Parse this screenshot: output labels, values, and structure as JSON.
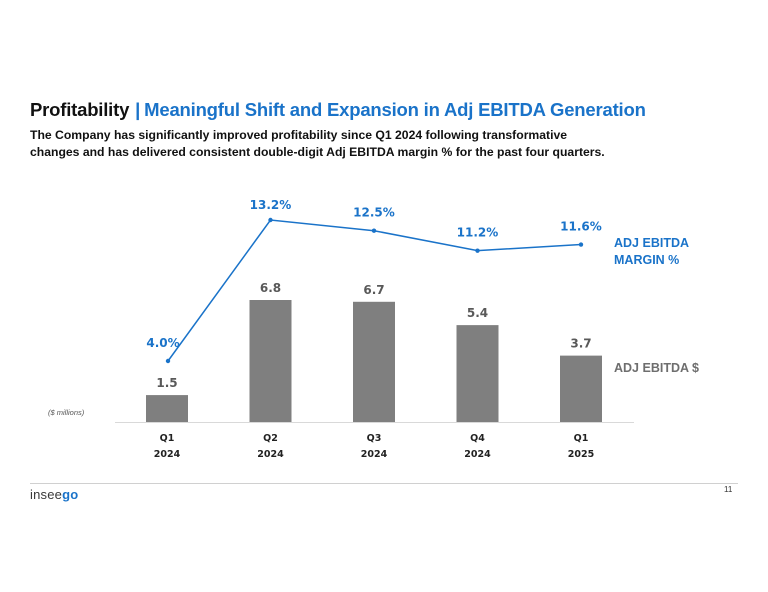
{
  "slide": {
    "title_main": "Profitability",
    "title_separator": "|",
    "title_highlight": "Meaningful Shift and Expansion in Adj EBITDA Generation",
    "subtitle_lines": [
      "The Company has significantly improved profitability since Q1 2024 following transformative",
      "changes and has delivered consistent double-digit Adj EBITDA margin % for the past four quarters."
    ],
    "legend_margin_line1": "ADJ EBITDA",
    "legend_margin_line2": "MARGIN %",
    "legend_dollar": "ADJ EBITDA $",
    "units_note": "($ millions)",
    "logo_text_a": "insee",
    "logo_text_b": "go",
    "page_number": "11"
  },
  "colors": {
    "accent": "#1a73c9",
    "bar": "#7f7f7f",
    "bar_label": "#595959",
    "text": "#111111"
  },
  "chart_data": {
    "type": "bar",
    "categories": [
      [
        "Q1",
        "2024"
      ],
      [
        "Q2",
        "2024"
      ],
      [
        "Q3",
        "2024"
      ],
      [
        "Q4",
        "2024"
      ],
      [
        "Q1",
        "2025"
      ]
    ],
    "series": [
      {
        "name": "ADJ EBITDA $",
        "type": "bar",
        "values": [
          1.5,
          6.8,
          6.7,
          5.4,
          3.7
        ],
        "labels": [
          "1.5",
          "6.8",
          "6.7",
          "5.4",
          "3.7"
        ]
      },
      {
        "name": "ADJ EBITDA MARGIN %",
        "type": "line",
        "values": [
          4.0,
          13.2,
          12.5,
          11.2,
          11.6
        ],
        "labels": [
          "4.0%",
          "13.2%",
          "12.5%",
          "11.2%",
          "11.6%"
        ]
      }
    ],
    "ylim_bar": [
      0,
      6.8
    ],
    "ylim_line": [
      4.0,
      13.2
    ],
    "xlabel": "",
    "ylabel": "($ millions)"
  }
}
